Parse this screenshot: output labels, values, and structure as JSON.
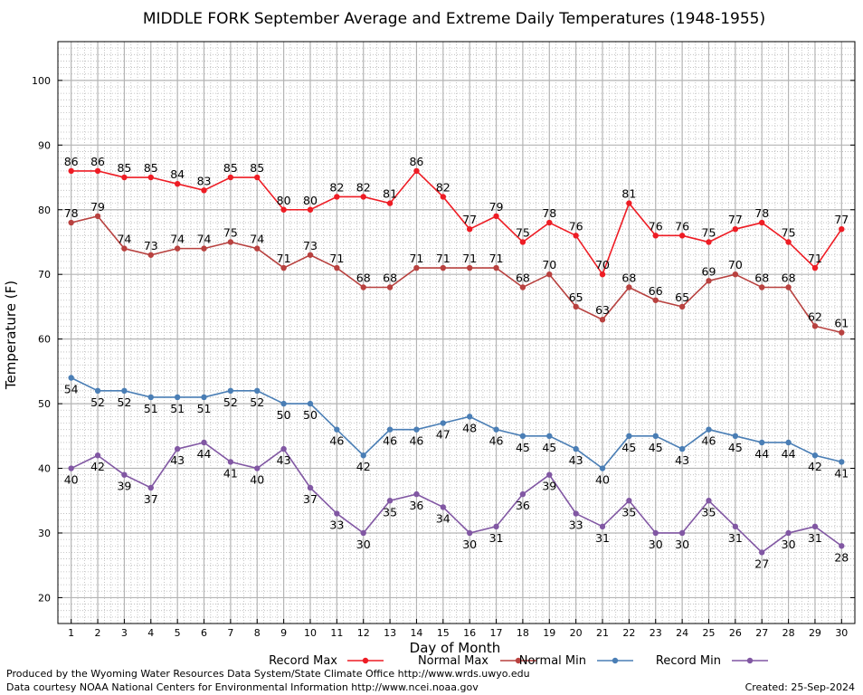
{
  "chart_data": {
    "type": "line",
    "title": "MIDDLE FORK September Average and Extreme Daily Temperatures (1948-1955)",
    "xlabel": "Day of Month",
    "ylabel": "Temperature (F)",
    "x": [
      1,
      2,
      3,
      4,
      5,
      6,
      7,
      8,
      9,
      10,
      11,
      12,
      13,
      14,
      15,
      16,
      17,
      18,
      19,
      20,
      21,
      22,
      23,
      24,
      25,
      26,
      27,
      28,
      29,
      30
    ],
    "xlim": [
      0.5,
      30.5
    ],
    "ylim": [
      16,
      106
    ],
    "yticks": [
      20,
      30,
      40,
      50,
      60,
      70,
      80,
      90,
      100
    ],
    "grid": true,
    "legend_position": "bottom",
    "series": [
      {
        "name": "Record Max",
        "color": "#ee1c24",
        "label_position": "above",
        "values": [
          86,
          86,
          85,
          85,
          84,
          83,
          85,
          85,
          80,
          80,
          82,
          82,
          81,
          86,
          82,
          77,
          79,
          75,
          78,
          76,
          70,
          81,
          76,
          76,
          75,
          77,
          78,
          75,
          71,
          77
        ]
      },
      {
        "name": "Normal Max",
        "color": "#b8413f",
        "label_position": "above",
        "values": [
          78,
          79,
          74,
          73,
          74,
          74,
          75,
          74,
          71,
          73,
          71,
          68,
          68,
          71,
          71,
          71,
          71,
          68,
          70,
          65,
          63,
          68,
          66,
          65,
          69,
          70,
          68,
          68,
          62,
          61
        ]
      },
      {
        "name": "Normal Min",
        "color": "#4a7eb5",
        "label_position": "below",
        "values": [
          54,
          52,
          52,
          51,
          51,
          51,
          52,
          52,
          50,
          50,
          46,
          42,
          46,
          46,
          47,
          48,
          46,
          45,
          45,
          43,
          40,
          45,
          45,
          43,
          46,
          45,
          44,
          44,
          42,
          41
        ]
      },
      {
        "name": "Record Min",
        "color": "#8157a3",
        "label_position": "below",
        "values": [
          40,
          42,
          39,
          37,
          43,
          44,
          41,
          40,
          43,
          37,
          33,
          30,
          35,
          36,
          34,
          30,
          31,
          36,
          39,
          33,
          31,
          35,
          30,
          30,
          35,
          31,
          27,
          30,
          31,
          28
        ]
      }
    ]
  },
  "footer": {
    "producer": "Produced by the Wyoming Water Resources Data System/State Climate Office http://www.wrds.uwyo.edu",
    "source": "Data courtesy NOAA National Centers for Environmental Information http://www.ncei.noaa.gov",
    "created": "Created:  25-Sep-2024"
  }
}
